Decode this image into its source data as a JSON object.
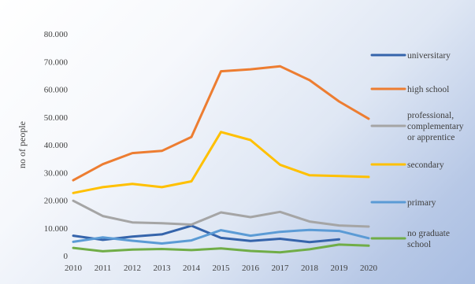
{
  "chart_data": {
    "type": "line",
    "title": "",
    "xlabel": "",
    "ylabel": "no of people",
    "x": [
      "2010",
      "2011",
      "2012",
      "2013",
      "2014",
      "2015",
      "2016",
      "2017",
      "2018",
      "2019",
      "2020"
    ],
    "y_ticks": [
      "0",
      "10.000",
      "20.000",
      "30.000",
      "40.000",
      "50.000",
      "60.000",
      "70.000",
      "80.000"
    ],
    "ylim": [
      0,
      80000
    ],
    "grid": false,
    "legend_position": "right",
    "series": [
      {
        "name": "universitary",
        "color": "#3564ab",
        "values": [
          7200,
          5700,
          6900,
          7700,
          10800,
          6400,
          5300,
          6100,
          4900,
          5900,
          null
        ]
      },
      {
        "name": "high school",
        "color": "#ed7d31",
        "values": [
          27200,
          33000,
          37000,
          37800,
          42800,
          66500,
          67200,
          68300,
          63300,
          55600,
          49400
        ]
      },
      {
        "name": "professional, complementary or apprentice",
        "color": "#a5a5a5",
        "legend_lines": [
          "professional,",
          "complementary",
          "or apprentice"
        ],
        "values": [
          19800,
          14300,
          12000,
          11700,
          11200,
          15600,
          13900,
          15800,
          12300,
          10900,
          10500
        ]
      },
      {
        "name": "secondary",
        "color": "#ffc000",
        "values": [
          22600,
          24700,
          25900,
          24700,
          26800,
          44600,
          41700,
          32800,
          29000,
          28700,
          28400
        ]
      },
      {
        "name": "primary",
        "color": "#5b9bd5",
        "values": [
          5000,
          6600,
          5400,
          4400,
          5500,
          9200,
          7200,
          8600,
          9300,
          8900,
          6300
        ]
      },
      {
        "name": "no graduate school",
        "color": "#70ad47",
        "legend_lines": [
          "no graduate",
          "school"
        ],
        "values": [
          2800,
          1600,
          2200,
          2400,
          2000,
          2600,
          1700,
          1200,
          2300,
          4000,
          3600
        ]
      }
    ]
  }
}
